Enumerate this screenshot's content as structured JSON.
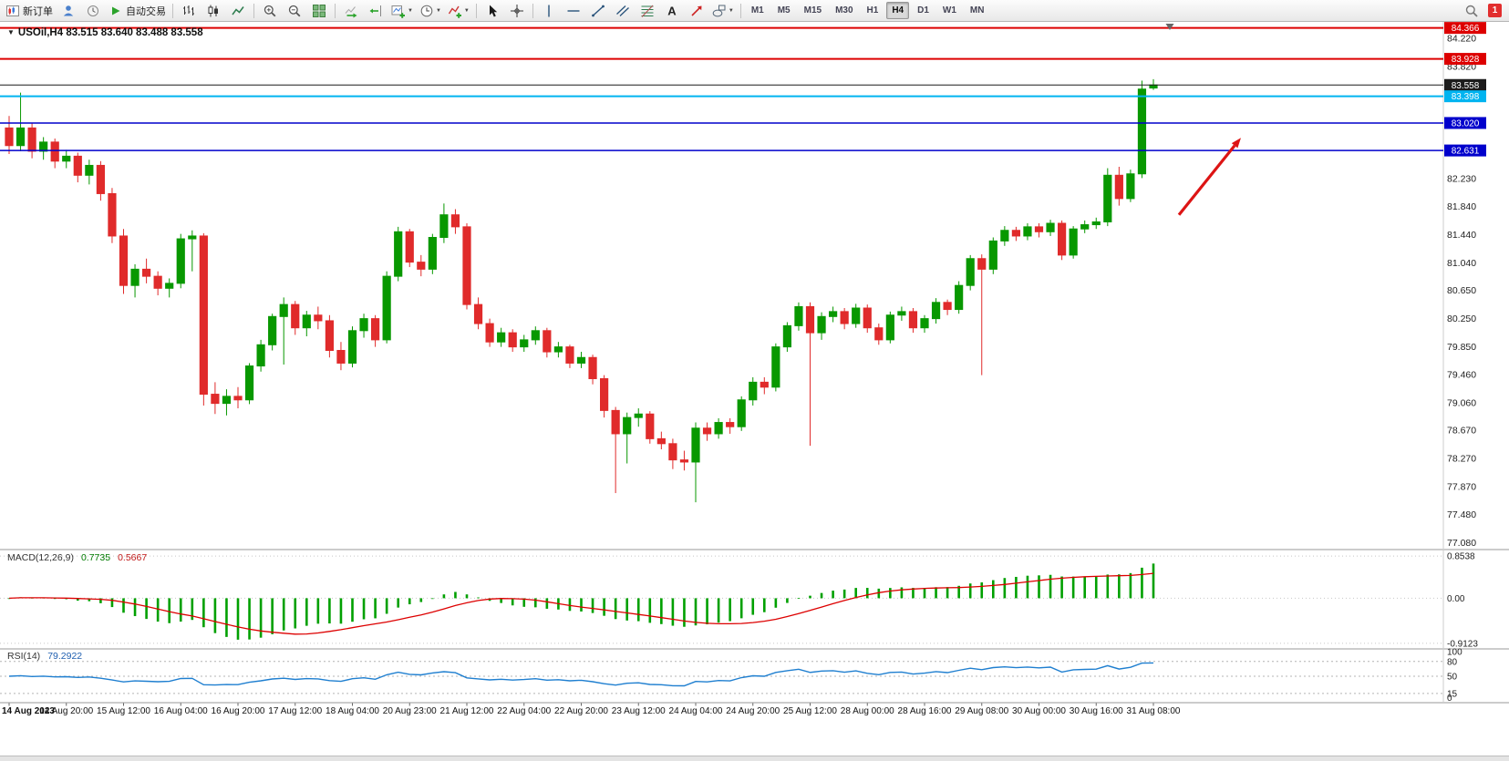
{
  "toolbar": {
    "items": [
      {
        "type": "button",
        "icon": "new-order-icon",
        "label": "新订单"
      },
      {
        "type": "icon",
        "icon": "user-icon"
      },
      {
        "type": "icon",
        "icon": "history-icon"
      },
      {
        "type": "button",
        "icon": "autotrade-icon",
        "label": "自动交易"
      },
      {
        "type": "sep"
      },
      {
        "type": "icon",
        "icon": "bar-chart-icon"
      },
      {
        "type": "icon",
        "icon": "candlestick-icon"
      },
      {
        "type": "icon",
        "icon": "line-chart-icon"
      },
      {
        "type": "sep"
      },
      {
        "type": "icon",
        "icon": "zoom-in-icon"
      },
      {
        "type": "icon",
        "icon": "zoom-out-icon"
      },
      {
        "type": "icon",
        "icon": "tile-windows-icon"
      },
      {
        "type": "sep"
      },
      {
        "type": "icon",
        "icon": "auto-scroll-icon"
      },
      {
        "type": "icon",
        "icon": "chart-shift-icon"
      },
      {
        "type": "dd",
        "icon": "new-chart-icon"
      },
      {
        "type": "dd",
        "icon": "periods-icon"
      },
      {
        "type": "dd",
        "icon": "indicators-icon"
      },
      {
        "type": "sep"
      },
      {
        "type": "icon",
        "icon": "cursor-icon"
      },
      {
        "type": "icon",
        "icon": "crosshair-icon"
      },
      {
        "type": "sep"
      },
      {
        "type": "icon",
        "icon": "vertical-line-icon"
      },
      {
        "type": "icon",
        "icon": "horizontal-line-icon"
      },
      {
        "type": "icon",
        "icon": "trendline-icon"
      },
      {
        "type": "icon",
        "icon": "channel-icon"
      },
      {
        "type": "icon",
        "icon": "fibonacci-icon"
      },
      {
        "type": "icon",
        "icon": "text-icon"
      },
      {
        "type": "icon",
        "icon": "arrow-tool-icon"
      },
      {
        "type": "dd",
        "icon": "shapes-icon"
      },
      {
        "type": "sep"
      },
      {
        "type": "tf"
      }
    ],
    "right_items": [
      {
        "type": "icon",
        "icon": "search-icon"
      },
      {
        "type": "badge",
        "label": "1"
      }
    ],
    "timeframes": [
      "M1",
      "M5",
      "M15",
      "M30",
      "H1",
      "H4",
      "D1",
      "W1",
      "MN"
    ],
    "active_timeframe": "H4"
  },
  "chart": {
    "title": "USOil,H4 83.515 83.640 83.488 83.558",
    "symbol": "USOil",
    "timeframe": "H4",
    "open": "83.515",
    "high": "83.640",
    "low": "83.488",
    "close": "83.558"
  },
  "price_axis": {
    "labels": [
      "84.220",
      "83.820",
      "82.230",
      "81.840",
      "81.440",
      "81.040",
      "80.650",
      "80.250",
      "79.850",
      "79.460",
      "79.060",
      "78.670",
      "78.270",
      "77.870",
      "77.480",
      "77.080"
    ]
  },
  "time_axis": {
    "labels": [
      "14 Aug 2023",
      "14 Aug 20:00",
      "15 Aug 12:00",
      "16 Aug 04:00",
      "16 Aug 20:00",
      "17 Aug 12:00",
      "18 Aug 04:00",
      "20 Aug 23:00",
      "21 Aug 12:00",
      "22 Aug 04:00",
      "22 Aug 20:00",
      "23 Aug 12:00",
      "24 Aug 04:00",
      "24 Aug 20:00",
      "25 Aug 12:00",
      "28 Aug 00:00",
      "28 Aug 16:00",
      "29 Aug 08:00",
      "30 Aug 00:00",
      "30 Aug 16:00",
      "31 Aug 08:00"
    ]
  },
  "indicators": {
    "macd": {
      "name": "MACD(12,26,9)",
      "value_main": "0.7735",
      "value_signal": "0.5667",
      "scale_labels": [
        "0.8538",
        "0.00",
        "-0.9123"
      ],
      "fast": 12,
      "slow": 26,
      "signal": 9,
      "histogram_color": "#00a000",
      "signal_color": "#dd0000"
    },
    "rsi": {
      "name": "RSI(14)",
      "value": "79.2922",
      "period": 14,
      "levels": [
        "100",
        "80",
        "50",
        "15",
        "0"
      ],
      "dashed_levels": [
        80,
        50,
        15
      ],
      "line_color": "#1f7fd0"
    }
  },
  "chart_data": {
    "type": "candlestick",
    "symbol": "USOil",
    "timeframe": "H4",
    "panes": [
      "price",
      "MACD",
      "RSI"
    ],
    "ylim": [
      77.0,
      84.4
    ],
    "up_color": "#089800",
    "down_color": "#e02b2b",
    "time_labels_every_n_candles": 5,
    "candles": [
      [
        82.95,
        83.12,
        82.58,
        82.7
      ],
      [
        82.7,
        83.45,
        82.62,
        82.95
      ],
      [
        82.95,
        83.02,
        82.52,
        82.62
      ],
      [
        82.62,
        82.82,
        82.5,
        82.75
      ],
      [
        82.75,
        82.8,
        82.38,
        82.48
      ],
      [
        82.48,
        82.64,
        82.38,
        82.55
      ],
      [
        82.55,
        82.6,
        82.18,
        82.28
      ],
      [
        82.28,
        82.5,
        82.15,
        82.42
      ],
      [
        82.42,
        82.48,
        81.92,
        82.02
      ],
      [
        82.02,
        82.1,
        81.32,
        81.42
      ],
      [
        81.42,
        81.52,
        80.6,
        80.72
      ],
      [
        80.72,
        81.02,
        80.55,
        80.95
      ],
      [
        80.95,
        81.1,
        80.75,
        80.85
      ],
      [
        80.85,
        80.92,
        80.58,
        80.68
      ],
      [
        80.68,
        80.82,
        80.55,
        80.75
      ],
      [
        80.75,
        81.45,
        80.68,
        81.38
      ],
      [
        81.38,
        81.5,
        80.92,
        81.42
      ],
      [
        81.42,
        81.46,
        79.02,
        79.18
      ],
      [
        79.18,
        79.35,
        78.9,
        79.05
      ],
      [
        79.05,
        79.25,
        78.88,
        79.15
      ],
      [
        79.15,
        79.28,
        78.98,
        79.1
      ],
      [
        79.1,
        79.62,
        79.04,
        79.58
      ],
      [
        79.58,
        79.95,
        79.5,
        79.88
      ],
      [
        79.88,
        80.32,
        79.8,
        80.28
      ],
      [
        80.28,
        80.55,
        79.6,
        80.45
      ],
      [
        80.45,
        80.5,
        80.02,
        80.12
      ],
      [
        80.12,
        80.36,
        80.0,
        80.3
      ],
      [
        80.3,
        80.42,
        80.1,
        80.22
      ],
      [
        80.22,
        80.3,
        79.7,
        79.8
      ],
      [
        79.8,
        79.92,
        79.52,
        79.62
      ],
      [
        79.62,
        80.14,
        79.56,
        80.08
      ],
      [
        80.08,
        80.32,
        79.98,
        80.25
      ],
      [
        80.25,
        80.3,
        79.85,
        79.95
      ],
      [
        79.95,
        80.92,
        79.9,
        80.85
      ],
      [
        80.85,
        81.55,
        80.78,
        81.48
      ],
      [
        81.48,
        81.52,
        80.98,
        81.05
      ],
      [
        81.05,
        81.15,
        80.85,
        80.95
      ],
      [
        80.95,
        81.45,
        80.88,
        81.4
      ],
      [
        81.4,
        81.88,
        81.32,
        81.72
      ],
      [
        81.72,
        81.8,
        81.45,
        81.55
      ],
      [
        81.55,
        81.6,
        80.38,
        80.45
      ],
      [
        80.45,
        80.55,
        80.1,
        80.18
      ],
      [
        80.18,
        80.25,
        79.85,
        79.92
      ],
      [
        79.92,
        80.12,
        79.85,
        80.05
      ],
      [
        80.05,
        80.1,
        79.78,
        79.85
      ],
      [
        79.85,
        80.02,
        79.78,
        79.95
      ],
      [
        79.95,
        80.14,
        79.88,
        80.08
      ],
      [
        80.08,
        80.12,
        79.7,
        79.78
      ],
      [
        79.78,
        79.92,
        79.7,
        79.85
      ],
      [
        79.85,
        79.88,
        79.55,
        79.62
      ],
      [
        79.62,
        79.78,
        79.55,
        79.7
      ],
      [
        79.7,
        79.74,
        79.32,
        79.4
      ],
      [
        79.4,
        79.45,
        78.85,
        78.95
      ],
      [
        78.95,
        79.0,
        77.78,
        78.62
      ],
      [
        78.62,
        78.92,
        78.2,
        78.85
      ],
      [
        78.85,
        78.98,
        78.72,
        78.9
      ],
      [
        78.9,
        78.94,
        78.48,
        78.55
      ],
      [
        78.55,
        78.65,
        78.4,
        78.48
      ],
      [
        78.48,
        78.55,
        78.12,
        78.25
      ],
      [
        78.25,
        78.38,
        78.1,
        78.22
      ],
      [
        78.22,
        78.78,
        77.65,
        78.7
      ],
      [
        78.7,
        78.78,
        78.52,
        78.62
      ],
      [
        78.62,
        78.84,
        78.55,
        78.78
      ],
      [
        78.78,
        78.84,
        78.62,
        78.72
      ],
      [
        78.72,
        79.15,
        78.66,
        79.1
      ],
      [
        79.1,
        79.42,
        79.02,
        79.35
      ],
      [
        79.35,
        79.42,
        79.18,
        79.28
      ],
      [
        79.28,
        79.9,
        79.22,
        79.85
      ],
      [
        79.85,
        80.2,
        79.78,
        80.15
      ],
      [
        80.15,
        80.48,
        80.08,
        80.42
      ],
      [
        80.42,
        80.48,
        78.45,
        80.05
      ],
      [
        80.05,
        80.34,
        79.95,
        80.28
      ],
      [
        80.28,
        80.42,
        80.2,
        80.35
      ],
      [
        80.35,
        80.4,
        80.1,
        80.18
      ],
      [
        80.18,
        80.46,
        80.12,
        80.4
      ],
      [
        80.4,
        80.45,
        80.05,
        80.12
      ],
      [
        80.12,
        80.18,
        79.88,
        79.95
      ],
      [
        79.95,
        80.35,
        79.9,
        80.3
      ],
      [
        80.3,
        80.42,
        80.22,
        80.35
      ],
      [
        80.35,
        80.4,
        80.05,
        80.12
      ],
      [
        80.12,
        80.3,
        80.05,
        80.25
      ],
      [
        80.25,
        80.54,
        80.18,
        80.48
      ],
      [
        80.48,
        80.52,
        80.3,
        80.38
      ],
      [
        80.38,
        80.78,
        80.32,
        80.72
      ],
      [
        80.72,
        81.15,
        80.65,
        81.1
      ],
      [
        81.1,
        81.16,
        79.45,
        80.95
      ],
      [
        80.95,
        81.4,
        80.88,
        81.35
      ],
      [
        81.35,
        81.56,
        81.28,
        81.5
      ],
      [
        81.5,
        81.55,
        81.35,
        81.42
      ],
      [
        81.42,
        81.6,
        81.36,
        81.55
      ],
      [
        81.55,
        81.6,
        81.4,
        81.48
      ],
      [
        81.48,
        81.65,
        81.42,
        81.6
      ],
      [
        81.6,
        81.64,
        81.08,
        81.15
      ],
      [
        81.15,
        81.56,
        81.1,
        81.52
      ],
      [
        81.52,
        81.64,
        81.46,
        81.58
      ],
      [
        81.58,
        81.68,
        81.52,
        81.62
      ],
      [
        81.62,
        82.38,
        81.56,
        82.28
      ],
      [
        82.28,
        82.4,
        81.85,
        81.95
      ],
      [
        81.95,
        82.36,
        81.9,
        82.3
      ],
      [
        82.3,
        83.62,
        82.24,
        83.5
      ],
      [
        83.515,
        83.64,
        83.488,
        83.558
      ]
    ],
    "hlines": [
      {
        "price": 84.366,
        "color": "#dd0000",
        "width": 2,
        "tag": "84.366",
        "tag_color": "#dd0000"
      },
      {
        "price": 83.928,
        "color": "#dd0000",
        "width": 2,
        "tag": "83.928",
        "tag_color": "#dd0000"
      },
      {
        "price": 83.558,
        "color": "#1a1a1a",
        "width": 1,
        "tag": "83.558",
        "tag_color": "#1c1c1c"
      },
      {
        "price": 83.398,
        "color": "#00b4f0",
        "width": 2,
        "tag": "83.398",
        "tag_color": "#00b4f0"
      },
      {
        "price": 83.02,
        "color": "#0000cc",
        "width": 1.5,
        "tag": "83.020",
        "tag_color": "#0000cc"
      },
      {
        "price": 82.631,
        "color": "#0000cc",
        "width": 1.5,
        "tag": "82.631",
        "tag_color": "#0000cc"
      }
    ],
    "arrow": {
      "x_from": 1293,
      "price_from": 81.72,
      "x_to": 1361,
      "price_to": 82.81,
      "color": "#dd1414"
    },
    "shift_marker_x": 1283
  }
}
